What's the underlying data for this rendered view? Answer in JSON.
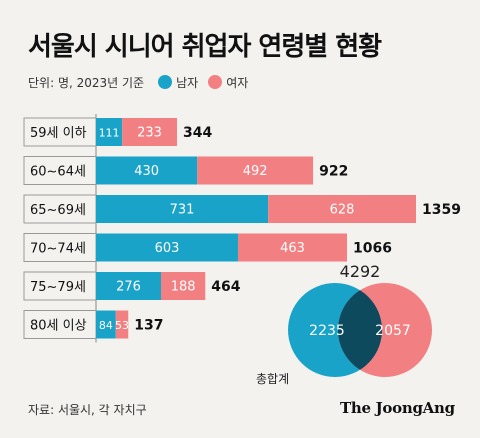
{
  "title": "서울시 시니어 취업자 연령별 현황",
  "unit_note": "단위: 명, 2023년 기준",
  "legend": [
    {
      "label": "남자",
      "color": "#1aa3c9"
    },
    {
      "label": "여자",
      "color": "#f27f82"
    }
  ],
  "colors": {
    "male": "#1aa3c9",
    "female": "#f27f82",
    "overlap": "#0d4a5e",
    "background": "#f3f2ef"
  },
  "chart_data": [
    {
      "type": "bar",
      "orientation": "horizontal",
      "stacked": true,
      "categories": [
        "59세 이하",
        "60~64세",
        "65~69세",
        "70~74세",
        "75~79세",
        "80세 이상"
      ],
      "series": [
        {
          "name": "남자",
          "values": [
            111,
            430,
            731,
            603,
            276,
            84
          ]
        },
        {
          "name": "여자",
          "values": [
            233,
            492,
            628,
            463,
            188,
            53
          ]
        }
      ],
      "totals": [
        344,
        922,
        1359,
        1066,
        464,
        137
      ],
      "xlim": [
        0,
        1359
      ],
      "legend_position": "top-left",
      "grid": false
    },
    {
      "type": "venn",
      "total": "4292",
      "sets": [
        {
          "name": "남자",
          "value": 2235
        },
        {
          "name": "여자",
          "value": 2057
        }
      ],
      "caption": "총합계"
    }
  ],
  "source": "자료: 서울시, 각 자치구",
  "logo": "The JoongAng"
}
